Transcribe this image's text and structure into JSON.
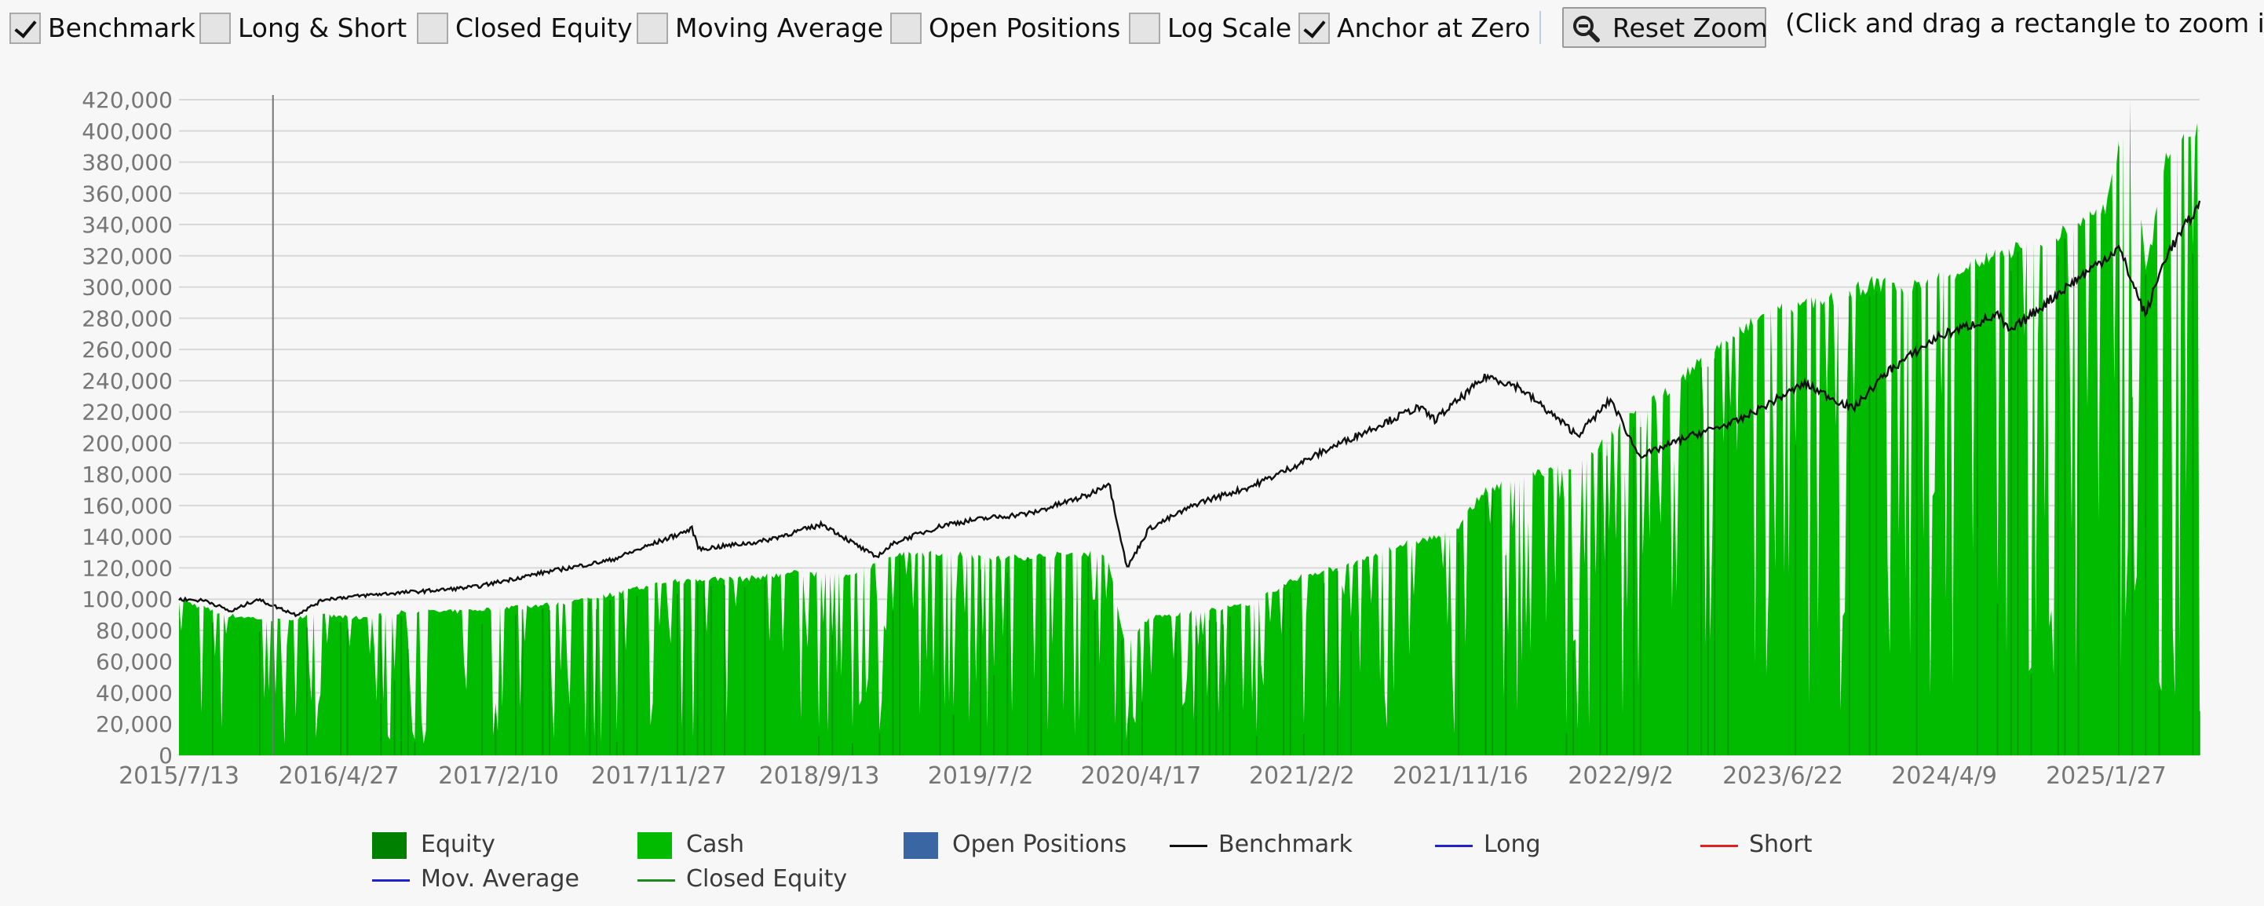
{
  "controls": {
    "benchmark": {
      "label": "Benchmark",
      "checked": true
    },
    "long_short": {
      "label": "Long & Short",
      "checked": false
    },
    "closed_equity": {
      "label": "Closed Equity",
      "checked": false
    },
    "moving_average": {
      "label": "Moving Average",
      "checked": false
    },
    "open_positions": {
      "label": "Open Positions",
      "checked": false
    },
    "log_scale": {
      "label": "Log Scale",
      "checked": false
    },
    "anchor_zero": {
      "label": "Anchor at Zero",
      "checked": true
    },
    "reset_zoom_label": "Reset Zoom",
    "zoom_hint": "(Click and drag a rectangle to zoom in)"
  },
  "icons": {
    "reset_zoom": "zoom-out-magnifier-icon",
    "checkbox_checked": "checkmark-icon"
  },
  "colors": {
    "equity": "#008000",
    "cash": "#00bb00",
    "open_positions": "#3a66a3",
    "benchmark": "#111111",
    "long": "#2222cc",
    "short": "#dd2222",
    "mov_average": "#2222cc",
    "closed_equity": "#1e8a1e",
    "grid": "#d8d8d8"
  },
  "legend": [
    {
      "key": "equity",
      "label": "Equity",
      "style": "swatch",
      "color": "#008000"
    },
    {
      "key": "cash",
      "label": "Cash",
      "style": "swatch",
      "color": "#00bb00"
    },
    {
      "key": "open_positions",
      "label": "Open Positions",
      "style": "swatch",
      "color": "#3a66a3"
    },
    {
      "key": "benchmark",
      "label": "Benchmark",
      "style": "line",
      "color": "#111111"
    },
    {
      "key": "long",
      "label": "Long",
      "style": "line",
      "color": "#2222cc"
    },
    {
      "key": "short",
      "label": "Short",
      "style": "line",
      "color": "#dd2222"
    },
    {
      "key": "mov_average",
      "label": "Mov. Average",
      "style": "line",
      "color": "#2222cc"
    },
    {
      "key": "closed_equity",
      "label": "Closed Equity",
      "style": "line",
      "color": "#1e8a1e"
    }
  ],
  "chart_data": {
    "type": "area",
    "ylim": [
      0,
      420000
    ],
    "y_ticks": [
      0,
      20000,
      40000,
      60000,
      80000,
      100000,
      120000,
      140000,
      160000,
      180000,
      200000,
      220000,
      240000,
      260000,
      280000,
      300000,
      320000,
      340000,
      360000,
      380000,
      400000,
      420000
    ],
    "y_tick_labels": [
      "0",
      "20,000",
      "40,000",
      "60,000",
      "80,000",
      "100,000",
      "120,000",
      "140,000",
      "160,000",
      "180,000",
      "200,000",
      "220,000",
      "240,000",
      "260,000",
      "280,000",
      "300,000",
      "320,000",
      "340,000",
      "360,000",
      "380,000",
      "400,000",
      "420,000"
    ],
    "x_range": [
      "2015-07-13",
      "2025-07-15"
    ],
    "x_ticks": [
      "2015-07-13",
      "2016-04-27",
      "2017-02-10",
      "2017-11-27",
      "2018-09-13",
      "2019-07-02",
      "2020-04-17",
      "2021-02-02",
      "2021-11-16",
      "2022-09-02",
      "2023-06-22",
      "2024-04-09",
      "2025-01-27"
    ],
    "x_tick_labels": [
      "2015/7/13",
      "2016/4/27",
      "2017/2/10",
      "2017/11/27",
      "2018/9/13",
      "2019/7/2",
      "2020/4/17",
      "2021/2/2",
      "2021/11/16",
      "2022/9/2",
      "2023/6/22",
      "2024/4/9",
      "2025/1/27"
    ],
    "grid": true,
    "legend_position": "bottom",
    "marker_date": "2015-12-30",
    "series": [
      {
        "name": "Equity",
        "style": "area",
        "x": [
          "2015-07-13",
          "2015-10-01",
          "2016-01-20",
          "2016-03-01",
          "2016-06-01",
          "2016-09-01",
          "2016-12-01",
          "2017-03-01",
          "2017-06-01",
          "2017-09-01",
          "2017-12-01",
          "2018-02-01",
          "2018-05-01",
          "2018-08-01",
          "2018-11-01",
          "2019-02-01",
          "2019-05-01",
          "2019-08-01",
          "2019-11-01",
          "2020-02-15",
          "2020-03-20",
          "2020-05-01",
          "2020-08-01",
          "2020-11-01",
          "2021-02-01",
          "2021-05-01",
          "2021-08-01",
          "2021-11-01",
          "2021-12-31",
          "2022-03-01",
          "2022-06-15",
          "2022-09-01",
          "2022-10-15",
          "2023-01-01",
          "2023-03-01",
          "2023-06-01",
          "2023-09-01",
          "2023-12-01",
          "2024-03-01",
          "2024-06-01",
          "2024-09-01",
          "2024-12-01",
          "2025-01-27",
          "2025-03-10",
          "2025-04-10",
          "2025-05-20",
          "2025-07-15"
        ],
        "values": [
          100000,
          90000,
          86000,
          90000,
          88000,
          92000,
          92000,
          95000,
          97000,
          103000,
          110000,
          113000,
          113000,
          117000,
          115000,
          128000,
          130000,
          126000,
          128000,
          130000,
          70000,
          88000,
          92000,
          97000,
          115000,
          122000,
          135000,
          142000,
          170000,
          178000,
          185000,
          212000,
          222000,
          245000,
          262000,
          285000,
          290000,
          302000,
          300000,
          315000,
          326000,
          337000,
          352000,
          420000,
          310000,
          390000,
          405000
        ]
      },
      {
        "name": "Benchmark",
        "style": "line",
        "x": [
          "2015-07-13",
          "2015-09-01",
          "2015-10-15",
          "2015-12-01",
          "2016-02-10",
          "2016-04-01",
          "2016-07-01",
          "2016-11-01",
          "2017-01-01",
          "2017-05-01",
          "2017-09-01",
          "2018-01-26",
          "2018-02-08",
          "2018-06-01",
          "2018-09-20",
          "2018-12-24",
          "2019-02-01",
          "2019-05-01",
          "2019-07-15",
          "2019-10-01",
          "2020-01-15",
          "2020-02-19",
          "2020-03-23",
          "2020-05-01",
          "2020-08-01",
          "2020-11-01",
          "2021-01-01",
          "2021-04-01",
          "2021-07-01",
          "2021-09-01",
          "2021-10-01",
          "2022-01-03",
          "2022-03-01",
          "2022-06-16",
          "2022-08-15",
          "2022-09-30",
          "2022-10-12",
          "2023-01-01",
          "2023-04-01",
          "2023-07-31",
          "2023-10-27",
          "2023-12-29",
          "2024-03-28",
          "2024-07-16",
          "2024-08-05",
          "2024-11-01",
          "2025-02-19",
          "2025-04-08",
          "2025-05-15",
          "2025-07-15"
        ],
        "values": [
          100000,
          99000,
          92000,
          100000,
          90000,
          100000,
          103000,
          106000,
          108000,
          117000,
          125000,
          145000,
          132000,
          137000,
          148000,
          127000,
          137000,
          148000,
          152000,
          155000,
          167000,
          175000,
          120000,
          145000,
          162000,
          172000,
          182000,
          198000,
          213000,
          223000,
          215000,
          243000,
          236000,
          205000,
          228000,
          195000,
          192000,
          204000,
          214000,
          238000,
          222000,
          246000,
          268000,
          282000,
          271000,
          296000,
          325000,
          282000,
          320000,
          353000
        ]
      }
    ]
  }
}
